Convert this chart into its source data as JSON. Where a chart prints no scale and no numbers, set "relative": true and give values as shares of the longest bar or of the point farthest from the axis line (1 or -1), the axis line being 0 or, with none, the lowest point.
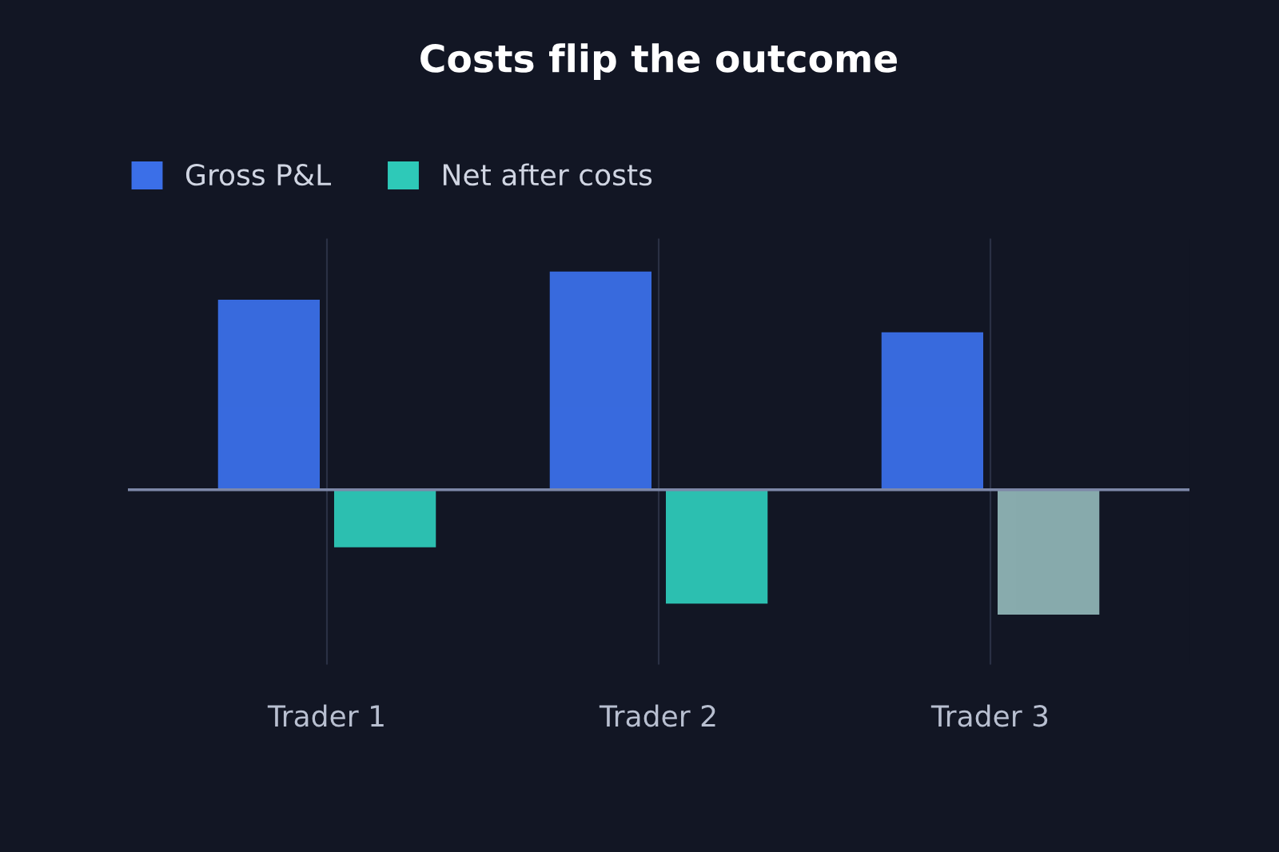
{
  "chart_data": {
    "type": "bar",
    "title": "Costs flip the outcome",
    "relative": true,
    "categories": [
      "Trader 1",
      "Trader 2",
      "Trader 3"
    ],
    "series": [
      {
        "name": "Gross P&L",
        "color": "#3b6fe8",
        "values": [
          0.87,
          1,
          0.72
        ]
      },
      {
        "name": "Net after costs",
        "color": "#2ec9b8",
        "colors": [
          "#2ec9b8",
          "#2ec9b8",
          "#8fb3b5"
        ],
        "values": [
          -0.26,
          -0.52,
          -0.57
        ]
      }
    ],
    "ref_lines": [
      {
        "axis": "y",
        "value": 0,
        "color": "#7d88a8"
      }
    ],
    "grid": true,
    "legend": "top left"
  }
}
